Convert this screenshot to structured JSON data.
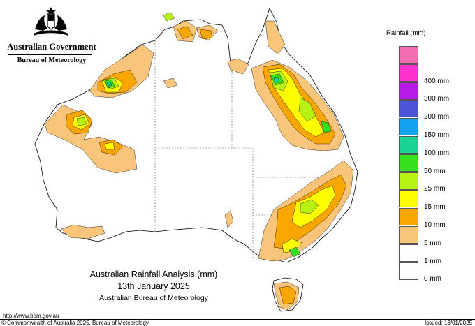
{
  "logo": {
    "government": "Australian Government",
    "agency": "Bureau of Meteorology"
  },
  "legend": {
    "title": "Rainfall (mm)",
    "items": [
      {
        "label": "",
        "color": "#f46db2"
      },
      {
        "label": "400 mm",
        "color": "#ff32ce"
      },
      {
        "label": "300 mm",
        "color": "#b61ae6"
      },
      {
        "label": "200 mm",
        "color": "#4e54d8"
      },
      {
        "label": "150 mm",
        "color": "#14a3f0"
      },
      {
        "label": "100 mm",
        "color": "#1bd394"
      },
      {
        "label": "50 mm",
        "color": "#37e01f"
      },
      {
        "label": "25 mm",
        "color": "#b8f214"
      },
      {
        "label": "15 mm",
        "color": "#fdfd00"
      },
      {
        "label": "10 mm",
        "color": "#f9a600"
      },
      {
        "label": "5 mm",
        "color": "#f8c57a"
      },
      {
        "label": "1 mm",
        "color": "#ffffff"
      },
      {
        "label": "0 mm",
        "color": ""
      }
    ]
  },
  "map": {
    "title_line1": "Australian Rainfall Analysis (mm)",
    "title_line2": "13th January 2025",
    "title_line3": "Australian Bureau of Meteorology"
  },
  "footer": {
    "url": "http://www.bom.gov.au",
    "copyright": "© Commonwealth of Australia 2025, Bureau of Meteorology",
    "issued": "Issued: 13/01/2025"
  },
  "colors": {
    "outline": "#000000",
    "border_dash": "#555555",
    "band_1mm": "#f8c57a",
    "band_5mm": "#f9a600",
    "band_10mm": "#fdfd00",
    "band_15mm": "#b8f214",
    "band_25mm": "#37e01f",
    "band_50mm": "#1bd394"
  }
}
